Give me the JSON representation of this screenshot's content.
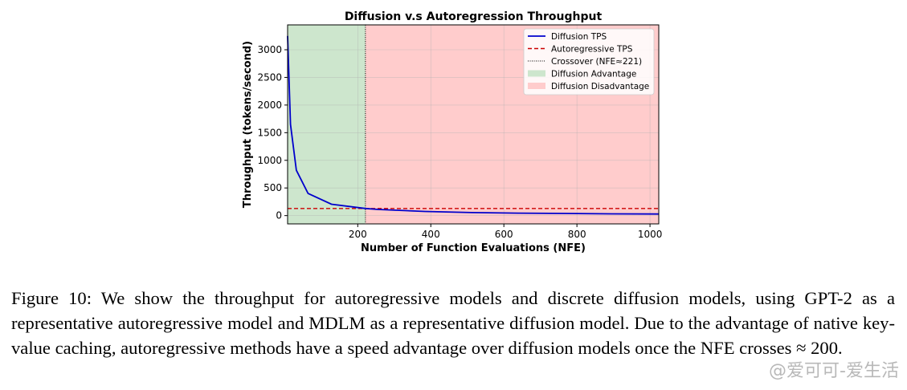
{
  "chart_data": {
    "type": "line",
    "title": "Diffusion v.s Autoregression Throughput",
    "xlabel": "Number of Function Evaluations (NFE)",
    "ylabel": "Throughput (tokens/second)",
    "xlim": [
      8,
      1024
    ],
    "ylim": [
      -150,
      3450
    ],
    "xticks": [
      200,
      400,
      600,
      800,
      1000
    ],
    "yticks": [
      0,
      500,
      1000,
      1500,
      2000,
      2500,
      3000
    ],
    "grid": true,
    "legend_position": "top-right",
    "series": [
      {
        "name": "Diffusion TPS",
        "style": "solid",
        "color": "#0000cc",
        "points": [
          [
            8,
            3250
          ],
          [
            16,
            1650
          ],
          [
            32,
            820
          ],
          [
            64,
            400
          ],
          [
            128,
            205
          ],
          [
            221,
            128
          ],
          [
            256,
            112
          ],
          [
            384,
            75
          ],
          [
            512,
            55
          ],
          [
            640,
            45
          ],
          [
            768,
            38
          ],
          [
            896,
            32
          ],
          [
            1024,
            28
          ]
        ]
      },
      {
        "name": "Autoregressive TPS",
        "style": "dashed",
        "color": "#cc0000",
        "value": 128
      }
    ],
    "crossover": {
      "label": "Crossover (NFE≈221)",
      "x": 221
    },
    "regions": [
      {
        "label": "Diffusion Advantage",
        "from": 8,
        "to": 221,
        "color": "#cde6cd"
      },
      {
        "label": "Diffusion Disadvantage",
        "from": 221,
        "to": 1024,
        "color": "#ffcccc"
      }
    ]
  },
  "caption": "Figure 10: We show the throughput for autoregressive models and discrete diffusion models, using GPT-2 as a representative autoregressive model and MDLM as a representative diffusion model. Due to the advantage of native key-value caching, autoregressive methods have a speed advantage over diffusion models once the NFE crosses ≈ 200.",
  "watermark": "@爱可可-爱生活"
}
